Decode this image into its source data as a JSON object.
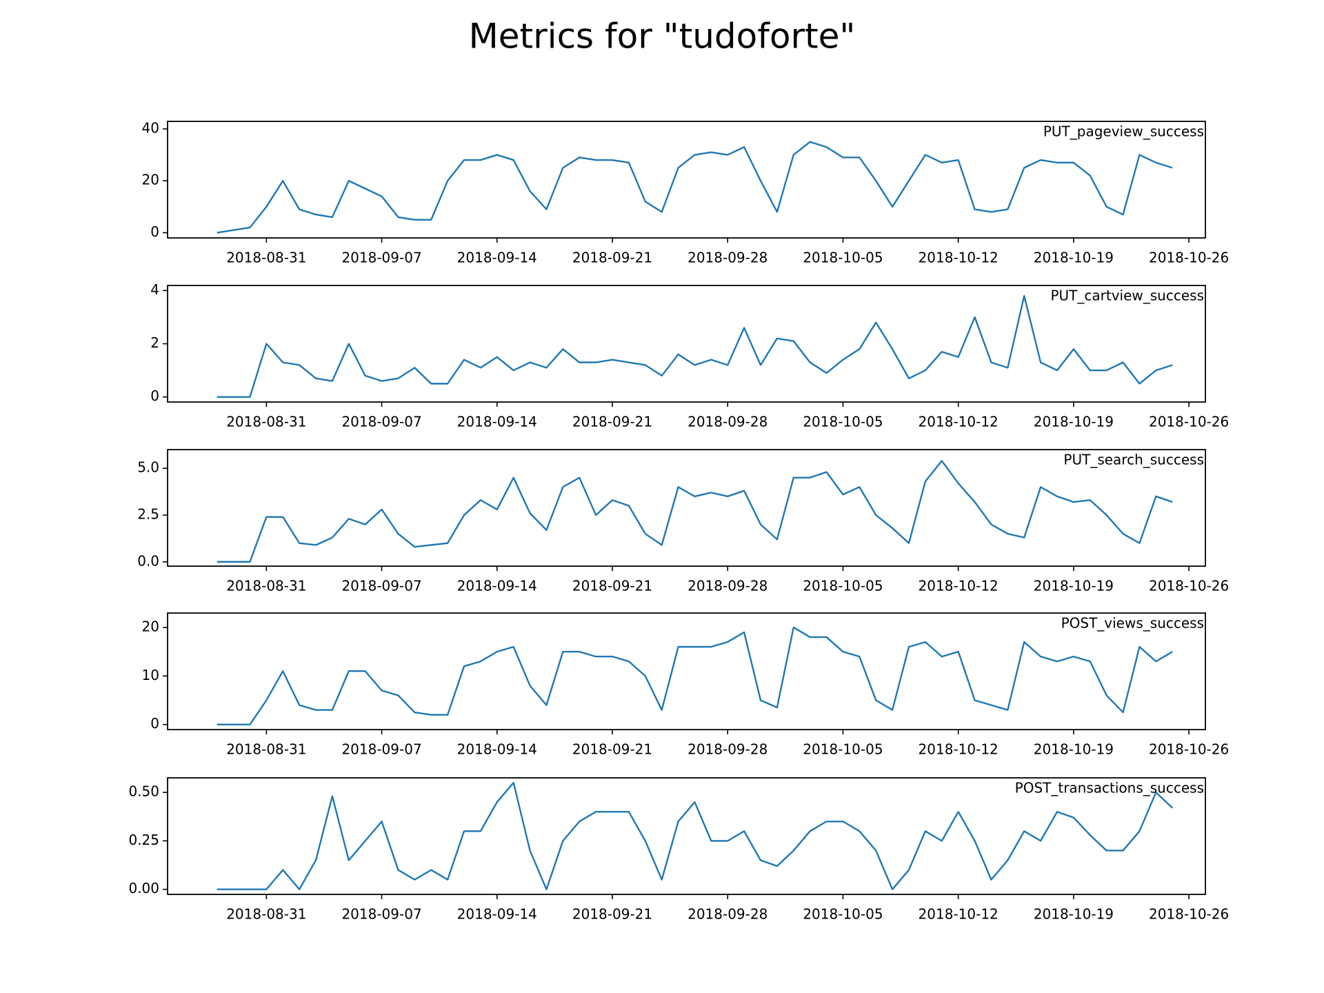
{
  "title": "Metrics for \"tudoforte\"",
  "chart_data": [
    {
      "type": "line",
      "x": [
        "2018-08-28",
        "2018-08-29",
        "2018-08-30",
        "2018-08-31",
        "2018-09-01",
        "2018-09-02",
        "2018-09-03",
        "2018-09-04",
        "2018-09-05",
        "2018-09-06",
        "2018-09-07",
        "2018-09-08",
        "2018-09-09",
        "2018-09-10",
        "2018-09-11",
        "2018-09-12",
        "2018-09-13",
        "2018-09-14",
        "2018-09-15",
        "2018-09-16",
        "2018-09-17",
        "2018-09-18",
        "2018-09-19",
        "2018-09-20",
        "2018-09-21",
        "2018-09-22",
        "2018-09-23",
        "2018-09-24",
        "2018-09-25",
        "2018-09-26",
        "2018-09-27",
        "2018-09-28",
        "2018-09-29",
        "2018-09-30",
        "2018-10-01",
        "2018-10-02",
        "2018-10-03",
        "2018-10-04",
        "2018-10-05",
        "2018-10-06",
        "2018-10-07",
        "2018-10-08",
        "2018-10-09",
        "2018-10-10",
        "2018-10-11",
        "2018-10-12",
        "2018-10-13",
        "2018-10-14",
        "2018-10-15",
        "2018-10-16",
        "2018-10-17",
        "2018-10-18",
        "2018-10-19",
        "2018-10-20",
        "2018-10-21",
        "2018-10-22",
        "2018-10-23",
        "2018-10-24",
        "2018-10-25"
      ],
      "series": [
        {
          "name": "PUT_pageview_success",
          "color": "#1f77b4",
          "values": [
            0,
            1,
            2,
            10,
            20,
            9,
            7,
            6,
            20,
            17,
            14,
            6,
            5,
            5,
            20,
            28,
            28,
            30,
            28,
            16,
            9,
            25,
            29,
            28,
            28,
            27,
            12,
            8,
            25,
            30,
            31,
            30,
            33,
            20,
            8,
            30,
            35,
            33,
            29,
            29,
            20,
            10,
            20,
            30,
            27,
            28,
            9,
            8,
            9,
            25,
            28,
            27,
            27,
            22,
            10,
            7,
            30,
            27,
            25
          ]
        }
      ],
      "xlim": [
        "2018-08-25",
        "2018-10-27"
      ],
      "xticks": [
        "2018-08-31",
        "2018-09-07",
        "2018-09-14",
        "2018-09-21",
        "2018-09-28",
        "2018-10-05",
        "2018-10-12",
        "2018-10-19",
        "2018-10-26"
      ],
      "ylim": [
        -2.0,
        42.9
      ],
      "yticks": [
        0,
        20,
        40
      ]
    },
    {
      "type": "line",
      "x": [
        "2018-08-28",
        "2018-08-29",
        "2018-08-30",
        "2018-08-31",
        "2018-09-01",
        "2018-09-02",
        "2018-09-03",
        "2018-09-04",
        "2018-09-05",
        "2018-09-06",
        "2018-09-07",
        "2018-09-08",
        "2018-09-09",
        "2018-09-10",
        "2018-09-11",
        "2018-09-12",
        "2018-09-13",
        "2018-09-14",
        "2018-09-15",
        "2018-09-16",
        "2018-09-17",
        "2018-09-18",
        "2018-09-19",
        "2018-09-20",
        "2018-09-21",
        "2018-09-22",
        "2018-09-23",
        "2018-09-24",
        "2018-09-25",
        "2018-09-26",
        "2018-09-27",
        "2018-09-28",
        "2018-09-29",
        "2018-09-30",
        "2018-10-01",
        "2018-10-02",
        "2018-10-03",
        "2018-10-04",
        "2018-10-05",
        "2018-10-06",
        "2018-10-07",
        "2018-10-08",
        "2018-10-09",
        "2018-10-10",
        "2018-10-11",
        "2018-10-12",
        "2018-10-13",
        "2018-10-14",
        "2018-10-15",
        "2018-10-16",
        "2018-10-17",
        "2018-10-18",
        "2018-10-19",
        "2018-10-20",
        "2018-10-21",
        "2018-10-22",
        "2018-10-23",
        "2018-10-24",
        "2018-10-25"
      ],
      "series": [
        {
          "name": "PUT_cartview_success",
          "color": "#1f77b4",
          "values": [
            0,
            0,
            0,
            2.0,
            1.3,
            1.2,
            0.7,
            0.6,
            2.0,
            0.8,
            0.6,
            0.7,
            1.1,
            0.5,
            0.5,
            1.4,
            1.1,
            1.5,
            1.0,
            1.3,
            1.1,
            1.8,
            1.3,
            1.3,
            1.4,
            1.3,
            1.2,
            0.8,
            1.6,
            1.2,
            1.4,
            1.2,
            2.6,
            1.2,
            2.2,
            2.1,
            1.3,
            0.9,
            1.4,
            1.8,
            2.8,
            1.8,
            0.7,
            1.0,
            1.7,
            1.5,
            3.0,
            1.3,
            1.1,
            3.8,
            1.3,
            1.0,
            1.8,
            1.0,
            1.0,
            1.3,
            0.5,
            1.0,
            1.2
          ]
        }
      ],
      "xlim": [
        "2018-08-25",
        "2018-10-27"
      ],
      "xticks": [
        "2018-08-31",
        "2018-09-07",
        "2018-09-14",
        "2018-09-21",
        "2018-09-28",
        "2018-10-05",
        "2018-10-12",
        "2018-10-19",
        "2018-10-26"
      ],
      "ylim": [
        -0.19,
        4.19
      ],
      "yticks": [
        0,
        2,
        4
      ]
    },
    {
      "type": "line",
      "x": [
        "2018-08-28",
        "2018-08-29",
        "2018-08-30",
        "2018-08-31",
        "2018-09-01",
        "2018-09-02",
        "2018-09-03",
        "2018-09-04",
        "2018-09-05",
        "2018-09-06",
        "2018-09-07",
        "2018-09-08",
        "2018-09-09",
        "2018-09-10",
        "2018-09-11",
        "2018-09-12",
        "2018-09-13",
        "2018-09-14",
        "2018-09-15",
        "2018-09-16",
        "2018-09-17",
        "2018-09-18",
        "2018-09-19",
        "2018-09-20",
        "2018-09-21",
        "2018-09-22",
        "2018-09-23",
        "2018-09-24",
        "2018-09-25",
        "2018-09-26",
        "2018-09-27",
        "2018-09-28",
        "2018-09-29",
        "2018-09-30",
        "2018-10-01",
        "2018-10-02",
        "2018-10-03",
        "2018-10-04",
        "2018-10-05",
        "2018-10-06",
        "2018-10-07",
        "2018-10-08",
        "2018-10-09",
        "2018-10-10",
        "2018-10-11",
        "2018-10-12",
        "2018-10-13",
        "2018-10-14",
        "2018-10-15",
        "2018-10-16",
        "2018-10-17",
        "2018-10-18",
        "2018-10-19",
        "2018-10-20",
        "2018-10-21",
        "2018-10-22",
        "2018-10-23",
        "2018-10-24",
        "2018-10-25"
      ],
      "series": [
        {
          "name": "PUT_search_success",
          "color": "#1f77b4",
          "values": [
            0,
            0,
            0,
            2.4,
            2.4,
            1.0,
            0.9,
            1.3,
            2.3,
            2.0,
            2.8,
            1.5,
            0.8,
            0.9,
            1.0,
            2.5,
            3.3,
            2.8,
            4.5,
            2.6,
            1.7,
            4.0,
            4.5,
            2.5,
            3.3,
            3.0,
            1.5,
            0.9,
            4.0,
            3.5,
            3.7,
            3.5,
            3.8,
            2.0,
            1.2,
            4.5,
            4.5,
            4.8,
            3.6,
            4.0,
            2.5,
            1.8,
            1.0,
            4.3,
            5.4,
            4.2,
            3.2,
            2.0,
            1.5,
            1.3,
            4.0,
            3.5,
            3.2,
            3.3,
            2.5,
            1.5,
            1.0,
            3.5,
            3.2
          ]
        }
      ],
      "xlim": [
        "2018-08-25",
        "2018-10-27"
      ],
      "xticks": [
        "2018-08-31",
        "2018-09-07",
        "2018-09-14",
        "2018-09-21",
        "2018-09-28",
        "2018-10-05",
        "2018-10-12",
        "2018-10-19",
        "2018-10-26"
      ],
      "ylim": [
        -0.23,
        6.0
      ],
      "yticks": [
        {
          "value": 0,
          "label": "0.0"
        },
        {
          "value": 2.5,
          "label": "2.5"
        },
        {
          "value": 5,
          "label": "5.0"
        }
      ]
    },
    {
      "type": "line",
      "x": [
        "2018-08-28",
        "2018-08-29",
        "2018-08-30",
        "2018-08-31",
        "2018-09-01",
        "2018-09-02",
        "2018-09-03",
        "2018-09-04",
        "2018-09-05",
        "2018-09-06",
        "2018-09-07",
        "2018-09-08",
        "2018-09-09",
        "2018-09-10",
        "2018-09-11",
        "2018-09-12",
        "2018-09-13",
        "2018-09-14",
        "2018-09-15",
        "2018-09-16",
        "2018-09-17",
        "2018-09-18",
        "2018-09-19",
        "2018-09-20",
        "2018-09-21",
        "2018-09-22",
        "2018-09-23",
        "2018-09-24",
        "2018-09-25",
        "2018-09-26",
        "2018-09-27",
        "2018-09-28",
        "2018-09-29",
        "2018-09-30",
        "2018-10-01",
        "2018-10-02",
        "2018-10-03",
        "2018-10-04",
        "2018-10-05",
        "2018-10-06",
        "2018-10-07",
        "2018-10-08",
        "2018-10-09",
        "2018-10-10",
        "2018-10-11",
        "2018-10-12",
        "2018-10-13",
        "2018-10-14",
        "2018-10-15",
        "2018-10-16",
        "2018-10-17",
        "2018-10-18",
        "2018-10-19",
        "2018-10-20",
        "2018-10-21",
        "2018-10-22",
        "2018-10-23",
        "2018-10-24",
        "2018-10-25"
      ],
      "series": [
        {
          "name": "POST_views_success",
          "color": "#1f77b4",
          "values": [
            0,
            0,
            0,
            5,
            11,
            4,
            3,
            3,
            11,
            11,
            7,
            6,
            2.5,
            2,
            2,
            12,
            13,
            15,
            16,
            8,
            4,
            15,
            15,
            14,
            14,
            13,
            10,
            3,
            16,
            16,
            16,
            17,
            19,
            5,
            3.5,
            20,
            18,
            18,
            15,
            14,
            5,
            3,
            16,
            17,
            14,
            15,
            5,
            4,
            3,
            17,
            14,
            13,
            14,
            13,
            6,
            2.5,
            16,
            13,
            15
          ]
        }
      ],
      "xlim": [
        "2018-08-25",
        "2018-10-27"
      ],
      "xticks": [
        "2018-08-31",
        "2018-09-07",
        "2018-09-14",
        "2018-09-21",
        "2018-09-28",
        "2018-10-05",
        "2018-10-12",
        "2018-10-19",
        "2018-10-26"
      ],
      "ylim": [
        -1.04,
        22.96
      ],
      "yticks": [
        0,
        10,
        20
      ]
    },
    {
      "type": "line",
      "x": [
        "2018-08-28",
        "2018-08-29",
        "2018-08-30",
        "2018-08-31",
        "2018-09-01",
        "2018-09-02",
        "2018-09-03",
        "2018-09-04",
        "2018-09-05",
        "2018-09-06",
        "2018-09-07",
        "2018-09-08",
        "2018-09-09",
        "2018-09-10",
        "2018-09-11",
        "2018-09-12",
        "2018-09-13",
        "2018-09-14",
        "2018-09-15",
        "2018-09-16",
        "2018-09-17",
        "2018-09-18",
        "2018-09-19",
        "2018-09-20",
        "2018-09-21",
        "2018-09-22",
        "2018-09-23",
        "2018-09-24",
        "2018-09-25",
        "2018-09-26",
        "2018-09-27",
        "2018-09-28",
        "2018-09-29",
        "2018-09-30",
        "2018-10-01",
        "2018-10-02",
        "2018-10-03",
        "2018-10-04",
        "2018-10-05",
        "2018-10-06",
        "2018-10-07",
        "2018-10-08",
        "2018-10-09",
        "2018-10-10",
        "2018-10-11",
        "2018-10-12",
        "2018-10-13",
        "2018-10-14",
        "2018-10-15",
        "2018-10-16",
        "2018-10-17",
        "2018-10-18",
        "2018-10-19",
        "2018-10-20",
        "2018-10-21",
        "2018-10-22",
        "2018-10-23",
        "2018-10-24",
        "2018-10-25"
      ],
      "series": [
        {
          "name": "POST_transactions_success",
          "color": "#1f77b4",
          "values": [
            0,
            0,
            0,
            0,
            0.1,
            0,
            0.15,
            0.48,
            0.15,
            0.25,
            0.35,
            0.1,
            0.05,
            0.1,
            0.05,
            0.3,
            0.3,
            0.45,
            0.55,
            0.2,
            0,
            0.25,
            0.35,
            0.4,
            0.4,
            0.4,
            0.25,
            0.05,
            0.35,
            0.45,
            0.25,
            0.25,
            0.3,
            0.15,
            0.12,
            0.2,
            0.3,
            0.35,
            0.35,
            0.3,
            0.2,
            0,
            0.1,
            0.3,
            0.25,
            0.4,
            0.25,
            0.05,
            0.15,
            0.3,
            0.25,
            0.4,
            0.37,
            0.28,
            0.2,
            0.2,
            0.3,
            0.5,
            0.42
          ]
        }
      ],
      "xlim": [
        "2018-08-25",
        "2018-10-27"
      ],
      "xticks": [
        "2018-08-31",
        "2018-09-07",
        "2018-09-14",
        "2018-09-21",
        "2018-09-28",
        "2018-10-05",
        "2018-10-12",
        "2018-10-19",
        "2018-10-26"
      ],
      "ylim": [
        -0.026,
        0.575
      ],
      "yticks": [
        {
          "value": 0,
          "label": "0.00"
        },
        {
          "value": 0.25,
          "label": "0.25"
        },
        {
          "value": 0.5,
          "label": "0.50"
        }
      ]
    }
  ]
}
